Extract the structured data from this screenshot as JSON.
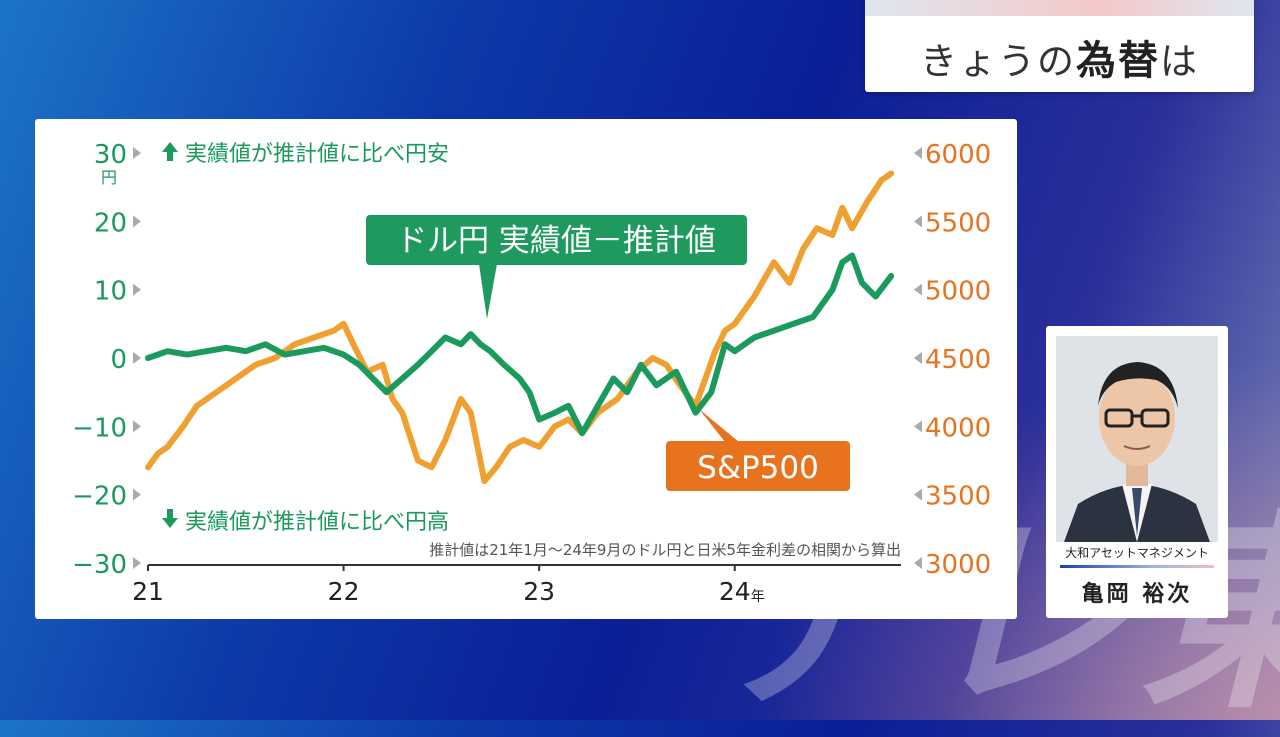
{
  "header": {
    "title_pre": "きょうの",
    "title_bold": "為替",
    "title_post": "は"
  },
  "watermark": "テレ東",
  "speaker": {
    "org": "大和アセットマネジメント",
    "name": "亀岡 裕次"
  },
  "colors": {
    "green": "#1a9a5c",
    "orange": "#f0a030",
    "callout_green": "#1e9a5e",
    "callout_orange": "#e8731e"
  },
  "chart_data": {
    "type": "line",
    "x_ticks": [
      "21",
      "22",
      "23",
      "24"
    ],
    "x_unit": "年",
    "left_axis": {
      "ticks": [
        30,
        20,
        10,
        0,
        -10,
        -20,
        -30
      ],
      "tick_labels": [
        "30",
        "20",
        "10",
        "0",
        "−10",
        "−20",
        "−30"
      ],
      "unit": "円",
      "range": [
        -30,
        30
      ]
    },
    "right_axis": {
      "ticks": [
        6000,
        5500,
        5000,
        4500,
        4000,
        3500,
        3000
      ],
      "range": [
        3000,
        6000
      ]
    },
    "annotations": {
      "top": "実績値が推計値に比べ円安",
      "bottom": "実績値が推計値に比べ円高",
      "note": "推計値は21年1月〜24年9月のドル円と日米5年金利差の相関から算出"
    },
    "series": [
      {
        "name": "ドル円 実績値－推計値",
        "axis": "left",
        "color": "#1a9a5c",
        "x": [
          2021.0,
          2021.1,
          2021.2,
          2021.3,
          2021.4,
          2021.5,
          2021.6,
          2021.7,
          2021.8,
          2021.9,
          2022.0,
          2022.08,
          2022.15,
          2022.22,
          2022.3,
          2022.38,
          2022.45,
          2022.52,
          2022.6,
          2022.65,
          2022.7,
          2022.75,
          2022.82,
          2022.9,
          2022.95,
          2023.0,
          2023.08,
          2023.15,
          2023.22,
          2023.3,
          2023.38,
          2023.45,
          2023.52,
          2023.6,
          2023.7,
          2023.8,
          2023.88,
          2023.95,
          2024.0,
          2024.1,
          2024.2,
          2024.3,
          2024.4,
          2024.5,
          2024.55,
          2024.6,
          2024.65,
          2024.72,
          2024.8
        ],
        "values": [
          0,
          1,
          0.5,
          1,
          1.5,
          1,
          2,
          0.5,
          1,
          1.5,
          0.5,
          -1,
          -3,
          -5,
          -3,
          -1,
          1,
          3,
          2,
          3.5,
          2,
          1,
          -1,
          -3,
          -5,
          -9,
          -8,
          -7,
          -11,
          -7,
          -3,
          -5,
          -1,
          -4,
          -2,
          -8,
          -5,
          2,
          1,
          3,
          4,
          5,
          6,
          10,
          14,
          15,
          11,
          9,
          12
        ]
      },
      {
        "name": "S&P500",
        "axis": "right",
        "color": "#f0a030",
        "x": [
          2021.0,
          2021.05,
          2021.1,
          2021.18,
          2021.25,
          2021.35,
          2021.45,
          2021.55,
          2021.65,
          2021.75,
          2021.85,
          2021.95,
          2022.0,
          2022.05,
          2022.12,
          2022.2,
          2022.25,
          2022.3,
          2022.38,
          2022.45,
          2022.52,
          2022.6,
          2022.65,
          2022.72,
          2022.78,
          2022.85,
          2022.92,
          2023.0,
          2023.08,
          2023.15,
          2023.22,
          2023.3,
          2023.4,
          2023.5,
          2023.58,
          2023.65,
          2023.72,
          2023.8,
          2023.85,
          2023.9,
          2023.95,
          2024.0,
          2024.1,
          2024.2,
          2024.28,
          2024.35,
          2024.42,
          2024.5,
          2024.55,
          2024.6,
          2024.68,
          2024.75,
          2024.8
        ],
        "values": [
          3700,
          3800,
          3850,
          4000,
          4150,
          4250,
          4350,
          4450,
          4500,
          4600,
          4650,
          4700,
          4750,
          4600,
          4400,
          4450,
          4200,
          4100,
          3750,
          3700,
          3900,
          4200,
          4100,
          3600,
          3700,
          3850,
          3900,
          3850,
          4000,
          4050,
          3950,
          4100,
          4200,
          4400,
          4500,
          4450,
          4300,
          4150,
          4350,
          4550,
          4700,
          4750,
          4950,
          5200,
          5050,
          5300,
          5450,
          5400,
          5600,
          5450,
          5650,
          5800,
          5850
        ]
      }
    ],
    "labels": {
      "usdjpy": "ドル円 実績値－推計値",
      "spx": "S&P500"
    }
  }
}
